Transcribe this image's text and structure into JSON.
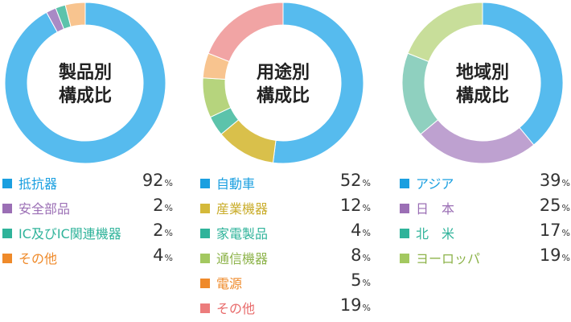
{
  "chart_data": [
    {
      "type": "pie",
      "title": "製品別\n構成比",
      "categories": [
        "抵抗器",
        "安全部品",
        "IC及びIC関連機器",
        "その他"
      ],
      "values": [
        92,
        2,
        2,
        4
      ],
      "unit": "%",
      "colors": [
        "#56bbee",
        "#a98ac5",
        "#5cc3ab",
        "#f8c48f"
      ],
      "legend_colors": [
        "#1a9fe0",
        "#9b6fb5",
        "#2fb39a",
        "#ef8a2a"
      ],
      "label_colors": [
        "#1a9fe0",
        "#9b6fb5",
        "#2fb39a",
        "#ef8a2a"
      ]
    },
    {
      "type": "pie",
      "title": "用途別\n構成比",
      "categories": [
        "自動車",
        "産業機器",
        "家電製品",
        "通信機器",
        "電源",
        "その他"
      ],
      "values": [
        52,
        12,
        4,
        8,
        5,
        19
      ],
      "unit": "%",
      "colors": [
        "#56bbee",
        "#d9c04b",
        "#5cc3ab",
        "#b6d47d",
        "#f8c48f",
        "#f1a4a4"
      ],
      "legend_colors": [
        "#1a9fe0",
        "#d4b93a",
        "#2fb39a",
        "#a3c860",
        "#ef8a2a",
        "#ec7c7c"
      ],
      "label_colors": [
        "#1a9fe0",
        "#c9ac2a",
        "#2fb39a",
        "#8db34a",
        "#ef8a2a",
        "#e86b6b"
      ]
    },
    {
      "type": "pie",
      "title": "地域別\n構成比",
      "categories": [
        "アジア",
        "日　本",
        "北　米",
        "ヨーロッパ"
      ],
      "values": [
        39,
        25,
        17,
        19
      ],
      "unit": "%",
      "colors": [
        "#56bbee",
        "#bea1d0",
        "#8fd0bf",
        "#c8de9a"
      ],
      "legend_colors": [
        "#1a9fe0",
        "#9b6fb5",
        "#2fb39a",
        "#a3c860"
      ],
      "label_colors": [
        "#1a9fe0",
        "#9b6fb5",
        "#2fb39a",
        "#8db34a"
      ]
    }
  ]
}
